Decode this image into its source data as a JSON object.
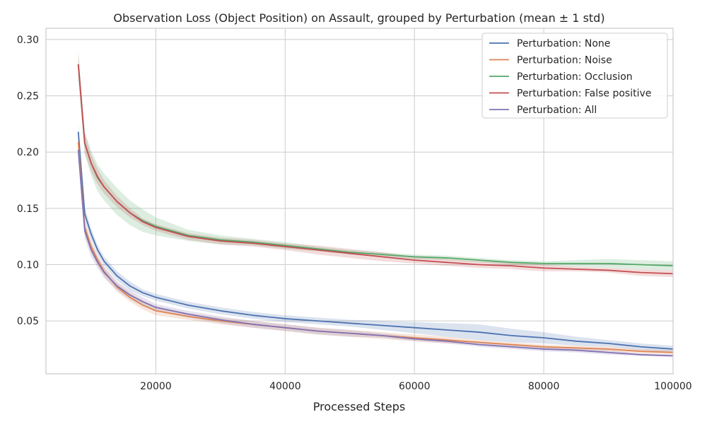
{
  "chart_data": {
    "type": "line",
    "title": "Observation Loss (Object Position) on Assault, grouped by Perturbation (mean ± 1 std)",
    "xlabel": "Processed Steps",
    "ylabel": "",
    "xlim": [
      3000,
      100000
    ],
    "ylim": [
      0.003,
      0.31
    ],
    "xticks": [
      20000,
      40000,
      60000,
      80000,
      100000
    ],
    "xtick_labels": [
      "20000",
      "40000",
      "60000",
      "80000",
      "100000"
    ],
    "yticks": [
      0.05,
      0.1,
      0.15,
      0.2,
      0.25,
      0.3
    ],
    "ytick_labels": [
      "0.05",
      "0.10",
      "0.15",
      "0.20",
      "0.25",
      "0.30"
    ],
    "grid": true,
    "legend_position": "top-right",
    "x": [
      8000,
      9000,
      10000,
      11000,
      12000,
      14000,
      16000,
      18000,
      20000,
      25000,
      30000,
      35000,
      40000,
      45000,
      50000,
      55000,
      60000,
      65000,
      70000,
      75000,
      80000,
      85000,
      90000,
      95000,
      100000
    ],
    "series": [
      {
        "name": "Perturbation: None",
        "color": "#4c72b0",
        "values": [
          0.218,
          0.145,
          0.127,
          0.113,
          0.103,
          0.09,
          0.081,
          0.075,
          0.071,
          0.064,
          0.059,
          0.055,
          0.052,
          0.05,
          0.048,
          0.046,
          0.044,
          0.042,
          0.04,
          0.037,
          0.035,
          0.032,
          0.03,
          0.027,
          0.025
        ],
        "std": [
          0.008,
          0.006,
          0.005,
          0.004,
          0.004,
          0.004,
          0.004,
          0.003,
          0.003,
          0.003,
          0.003,
          0.003,
          0.003,
          0.003,
          0.003,
          0.004,
          0.005,
          0.006,
          0.007,
          0.006,
          0.005,
          0.004,
          0.003,
          0.003,
          0.003
        ]
      },
      {
        "name": "Perturbation: Noise",
        "color": "#dd8452",
        "values": [
          0.209,
          0.133,
          0.116,
          0.104,
          0.094,
          0.08,
          0.071,
          0.064,
          0.059,
          0.054,
          0.05,
          0.047,
          0.044,
          0.041,
          0.039,
          0.037,
          0.035,
          0.033,
          0.031,
          0.029,
          0.027,
          0.026,
          0.025,
          0.023,
          0.022
        ],
        "std": [
          0.007,
          0.006,
          0.005,
          0.005,
          0.004,
          0.004,
          0.004,
          0.004,
          0.004,
          0.003,
          0.003,
          0.003,
          0.003,
          0.003,
          0.003,
          0.003,
          0.003,
          0.003,
          0.002,
          0.002,
          0.002,
          0.002,
          0.002,
          0.002,
          0.002
        ]
      },
      {
        "name": "Perturbation: Occlusion",
        "color": "#55a868",
        "values": [
          0.278,
          0.208,
          0.19,
          0.177,
          0.169,
          0.156,
          0.146,
          0.139,
          0.134,
          0.126,
          0.122,
          0.12,
          0.117,
          0.114,
          0.111,
          0.109,
          0.107,
          0.106,
          0.104,
          0.102,
          0.101,
          0.101,
          0.101,
          0.1,
          0.099
        ],
        "std": [
          0.01,
          0.01,
          0.011,
          0.012,
          0.012,
          0.012,
          0.011,
          0.01,
          0.008,
          0.005,
          0.004,
          0.003,
          0.003,
          0.002,
          0.002,
          0.002,
          0.002,
          0.002,
          0.002,
          0.002,
          0.002,
          0.003,
          0.004,
          0.004,
          0.004
        ]
      },
      {
        "name": "Perturbation: False positive",
        "color": "#c44e52",
        "values": [
          0.278,
          0.208,
          0.19,
          0.178,
          0.169,
          0.156,
          0.146,
          0.138,
          0.133,
          0.125,
          0.121,
          0.119,
          0.116,
          0.113,
          0.11,
          0.107,
          0.104,
          0.102,
          0.1,
          0.099,
          0.097,
          0.096,
          0.095,
          0.093,
          0.092
        ],
        "std": [
          0.012,
          0.009,
          0.008,
          0.007,
          0.006,
          0.005,
          0.004,
          0.003,
          0.003,
          0.003,
          0.003,
          0.003,
          0.003,
          0.004,
          0.004,
          0.004,
          0.003,
          0.003,
          0.003,
          0.003,
          0.003,
          0.002,
          0.002,
          0.003,
          0.003
        ]
      },
      {
        "name": "Perturbation: All",
        "color": "#8172b3",
        "values": [
          0.202,
          0.13,
          0.113,
          0.102,
          0.093,
          0.081,
          0.073,
          0.067,
          0.062,
          0.056,
          0.051,
          0.047,
          0.044,
          0.041,
          0.039,
          0.037,
          0.034,
          0.032,
          0.029,
          0.027,
          0.025,
          0.024,
          0.022,
          0.02,
          0.019
        ],
        "std": [
          0.009,
          0.007,
          0.006,
          0.005,
          0.005,
          0.004,
          0.004,
          0.004,
          0.003,
          0.003,
          0.003,
          0.003,
          0.003,
          0.003,
          0.003,
          0.002,
          0.002,
          0.002,
          0.002,
          0.002,
          0.002,
          0.002,
          0.002,
          0.001,
          0.001
        ]
      }
    ]
  }
}
